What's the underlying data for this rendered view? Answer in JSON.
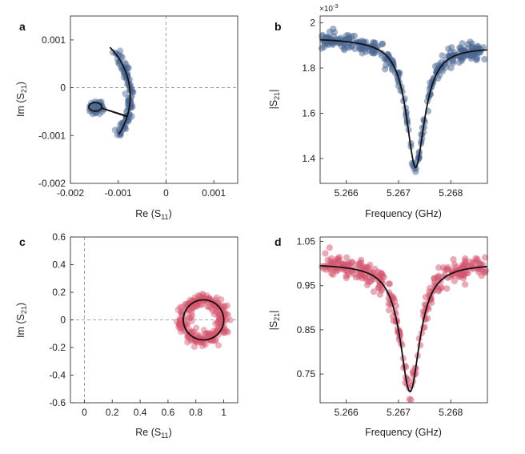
{
  "figure": {
    "panels": [
      "a",
      "b",
      "c",
      "d"
    ]
  },
  "colors": {
    "panel_ab_points": "#4a6591",
    "panel_cd_points": "#d4566f",
    "fit_line": "#111111",
    "zero_line": "#8a8a8a"
  },
  "chart_data": [
    {
      "id": "a",
      "type": "scatter",
      "panel_letter": "a",
      "xlabel_main": "Re (S",
      "xlabel_sub": "11",
      "xlabel_end": ")",
      "ylabel_main": "Im (S",
      "ylabel_sub": "21",
      "ylabel_end": ")",
      "xlim": [
        -0.002,
        0.0015
      ],
      "ylim": [
        -0.002,
        0.0015
      ],
      "xticks": [
        -0.002,
        -0.001,
        0,
        0.001
      ],
      "xtick_labels": [
        "-0.002",
        "-0.001",
        "0",
        "0.001"
      ],
      "yticks": [
        0.001,
        0,
        -0.001,
        -0.002
      ],
      "ytick_labels": [
        "0.001",
        "0",
        "-0.001",
        "-0.002"
      ],
      "zero_lines": true,
      "fit": {
        "center": [
          -0.0022,
          -0.00018
        ],
        "radius": 0.00145,
        "theta_start_deg": 45,
        "theta_end_deg": -33,
        "loop_center": [
          -0.00148,
          -0.0004
        ],
        "loop_radius": 9e-05
      },
      "scatter_count": 150,
      "scatter_noise": 4e-05
    },
    {
      "id": "b",
      "type": "scatter",
      "panel_letter": "b",
      "xlabel": "Frequency (GHz)",
      "ylabel_main": "|S",
      "ylabel_sub": "21",
      "ylabel_end": "|",
      "y_multiplier": "×10-3",
      "y_multiplier_base": "×10",
      "y_multiplier_exp": "-3",
      "xlim": [
        5.2655,
        5.2687
      ],
      "ylim": [
        1.29,
        2.03
      ],
      "xticks": [
        5.266,
        5.267,
        5.268
      ],
      "xtick_labels": [
        "5.266",
        "5.267",
        "5.268"
      ],
      "yticks": [
        2.0,
        1.8,
        1.6,
        1.4
      ],
      "ytick_labels": [
        "2",
        "1.8",
        "1.6",
        "1.4"
      ],
      "fit": {
        "model": "fano",
        "f0": 5.2673,
        "half_width": 0.00022,
        "baseline_left": 1.935,
        "baseline_right": 1.89,
        "min_value": 1.37,
        "asymmetry": 0.35
      },
      "scatter_count": 320,
      "scatter_noise": 0.018
    },
    {
      "id": "c",
      "type": "scatter",
      "panel_letter": "c",
      "xlabel_main": "Re (S",
      "xlabel_sub": "11",
      "xlabel_end": ")",
      "ylabel_main": "Im (S",
      "ylabel_sub": "21",
      "ylabel_end": ")",
      "xlim": [
        -0.1,
        1.1
      ],
      "ylim": [
        -0.6,
        0.6
      ],
      "xticks": [
        0,
        0.2,
        0.4,
        0.6,
        0.8,
        1
      ],
      "xtick_labels": [
        "0",
        "0.2",
        "0.4",
        "0.6",
        "0.8",
        "1"
      ],
      "yticks": [
        0.6,
        0.4,
        0.2,
        0,
        -0.2,
        -0.4,
        -0.6
      ],
      "ytick_labels": [
        "0.6",
        "0.4",
        "0.2",
        "0",
        "-0.2",
        "-0.4",
        "-0.6"
      ],
      "zero_lines": true,
      "fit": {
        "center": [
          0.855,
          0.0
        ],
        "radius": 0.145
      },
      "scatter_count": 260,
      "scatter_noise": 0.025
    },
    {
      "id": "d",
      "type": "scatter",
      "panel_letter": "d",
      "xlabel": "Frequency (GHz)",
      "ylabel_main": "|S",
      "ylabel_sub": "21",
      "ylabel_end": "|",
      "xlim": [
        5.2655,
        5.2687
      ],
      "ylim": [
        0.685,
        1.06
      ],
      "xticks": [
        5.266,
        5.267,
        5.268
      ],
      "xtick_labels": [
        "5.266",
        "5.267",
        "5.268"
      ],
      "yticks": [
        1.05,
        0.95,
        0.85,
        0.75
      ],
      "ytick_labels": [
        "1.05",
        "0.95",
        "0.85",
        "0.75"
      ],
      "fit": {
        "model": "lorentzian",
        "f0": 5.26722,
        "half_width": 0.00023,
        "baseline": 1.0,
        "min_value": 0.71,
        "asymmetry": 0.0
      },
      "scatter_count": 320,
      "scatter_noise": 0.014
    }
  ]
}
